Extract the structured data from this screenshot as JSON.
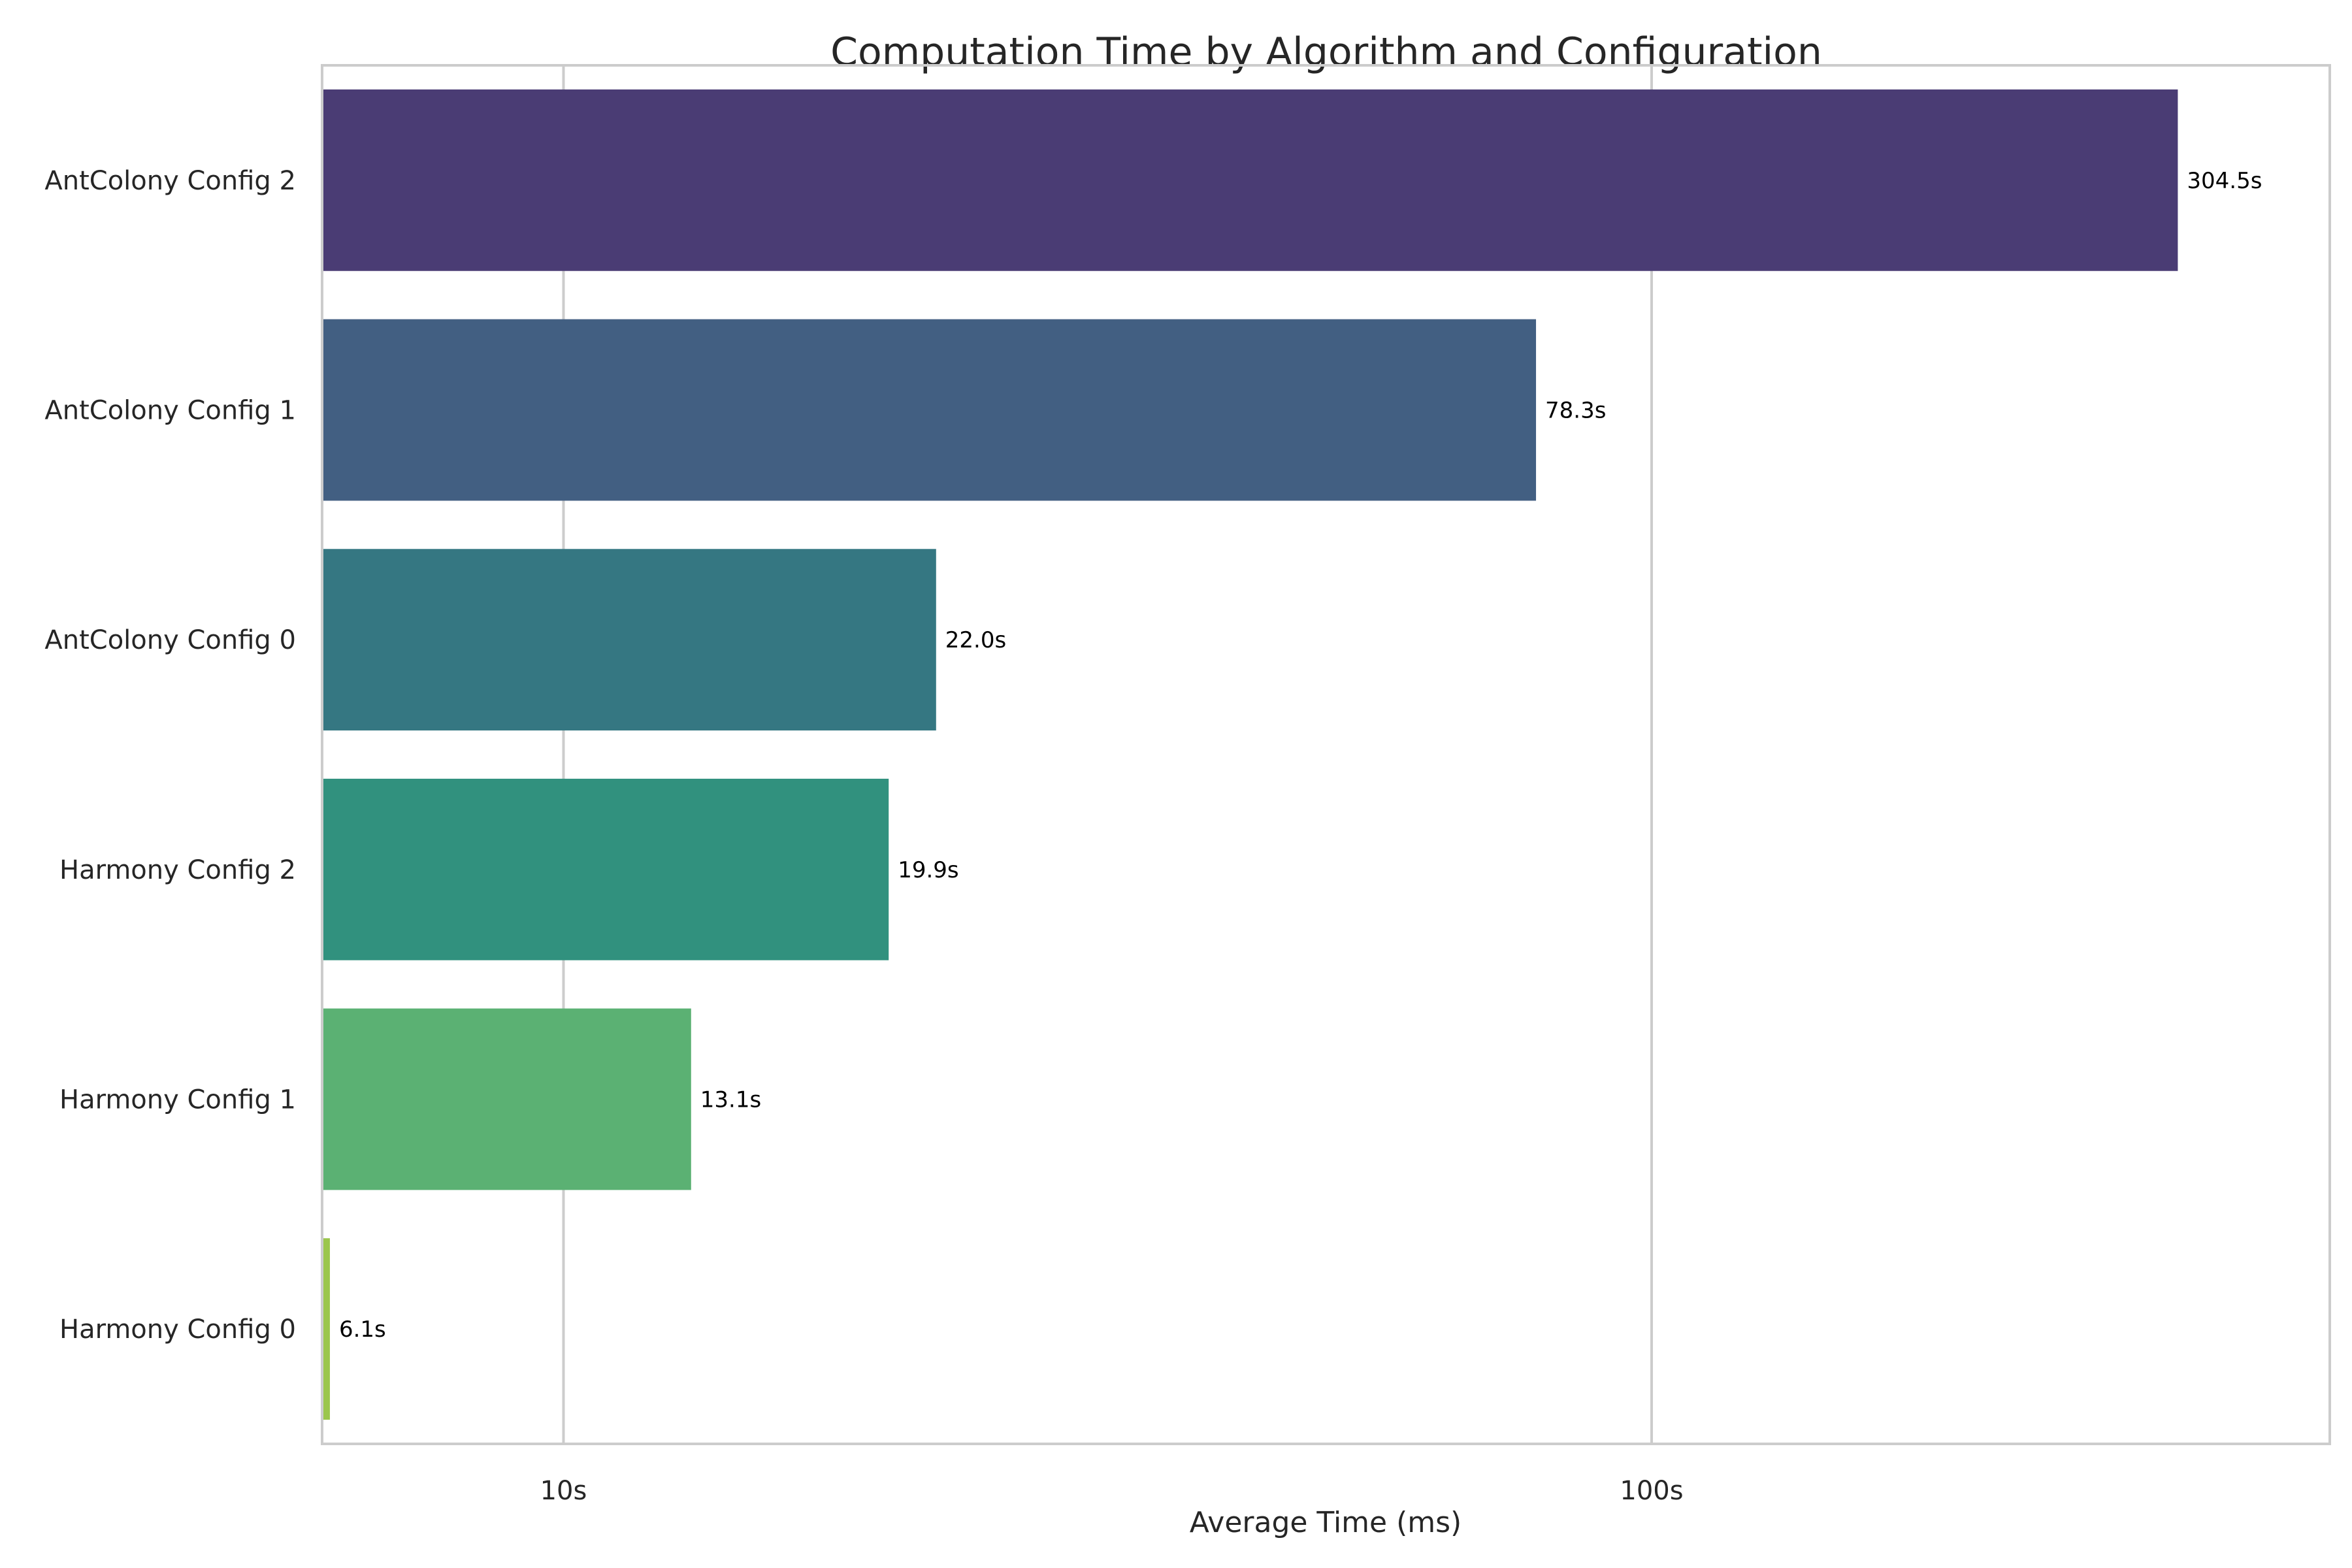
{
  "chart_data": {
    "type": "bar",
    "orientation": "horizontal",
    "title": "Computation Time by Algorithm and Configuration",
    "xlabel": "Average Time (ms)",
    "ylabel": "",
    "x_scale": "log",
    "xlim": [
      6.0,
      420
    ],
    "xticks": [
      {
        "value": 10,
        "label": "10s"
      },
      {
        "value": 100,
        "label": "100s"
      }
    ],
    "grid": true,
    "legend": "none",
    "categories": [
      "AntColony Config 2",
      "AntColony Config 1",
      "AntColony Config 0",
      "Harmony Config 2",
      "Harmony Config 1",
      "Harmony Config 0"
    ],
    "values": [
      304.5,
      78.3,
      22.0,
      19.9,
      13.1,
      6.1
    ],
    "value_labels": [
      "304.5s",
      "78.3s",
      "22.0s",
      "19.9s",
      "13.1s",
      "6.1s"
    ],
    "colors": [
      "#4a3c74",
      "#425f82",
      "#357782",
      "#31917e",
      "#5bb173",
      "#9bc64c"
    ]
  }
}
